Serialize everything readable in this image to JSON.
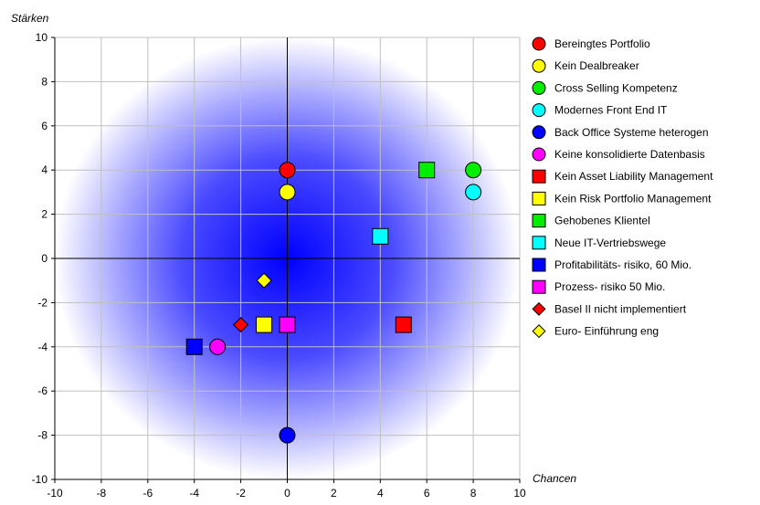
{
  "chart_data": {
    "type": "scatter",
    "xlabel": "Chancen",
    "ylabel": "Stärken",
    "xlim": [
      -10,
      10
    ],
    "ylim": [
      -10,
      10
    ],
    "xticks": [
      -10,
      -8,
      -6,
      -4,
      -2,
      0,
      2,
      4,
      6,
      8,
      10
    ],
    "yticks": [
      -10,
      -8,
      -6,
      -4,
      -2,
      0,
      2,
      4,
      6,
      8,
      10
    ],
    "grid": true,
    "background": "radial blue gradient centered at origin",
    "legend_position": "right",
    "series": [
      {
        "name": "Bereingtes Portfolio",
        "marker": "circle",
        "color": "#ff0000",
        "x": 0,
        "y": 4
      },
      {
        "name": "Kein Dealbreaker",
        "marker": "circle",
        "color": "#ffff00",
        "x": 0,
        "y": 3
      },
      {
        "name": "Cross Selling Kompetenz",
        "marker": "circle",
        "color": "#00ee00",
        "x": 8,
        "y": 4
      },
      {
        "name": "Modernes Front End IT",
        "marker": "circle",
        "color": "#00ffff",
        "x": 8,
        "y": 3
      },
      {
        "name": "Back Office Systeme heterogen",
        "marker": "circle",
        "color": "#0000ff",
        "x": 0,
        "y": -8
      },
      {
        "name": "Keine konsolidierte Datenbasis",
        "marker": "circle",
        "color": "#ff00ff",
        "x": -3,
        "y": -4
      },
      {
        "name": "Kein Asset Liability Management",
        "marker": "square",
        "color": "#ff0000",
        "x": 5,
        "y": -3
      },
      {
        "name": "Kein Risk Portfolio Management",
        "marker": "square",
        "color": "#ffff00",
        "x": -1,
        "y": -3
      },
      {
        "name": "Gehobenes Klientel",
        "marker": "square",
        "color": "#00ee00",
        "x": 6,
        "y": 4
      },
      {
        "name": "Neue IT-Vertriebswege",
        "marker": "square",
        "color": "#00ffff",
        "x": 4,
        "y": 1
      },
      {
        "name": "Profitabilitäts- risiko, 60 Mio.",
        "marker": "square",
        "color": "#0000ff",
        "x": -4,
        "y": -4
      },
      {
        "name": "Prozess- risiko 50 Mio.",
        "marker": "square",
        "color": "#ff00ff",
        "x": 0,
        "y": -3
      },
      {
        "name": "Basel II nicht implementiert",
        "marker": "diamond",
        "color": "#ff0000",
        "x": -2,
        "y": -3
      },
      {
        "name": "Euro- Einführung eng",
        "marker": "diamond",
        "color": "#ffff00",
        "x": -1,
        "y": -1
      }
    ]
  }
}
